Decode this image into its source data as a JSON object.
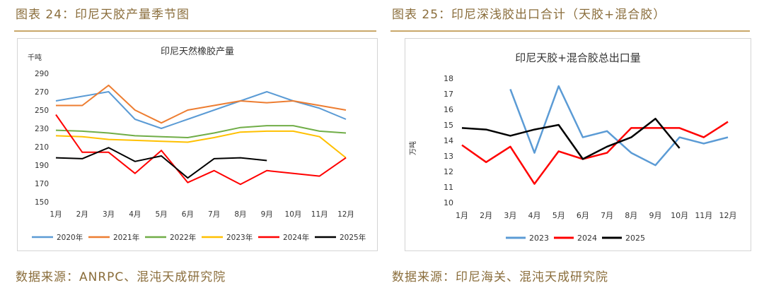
{
  "left": {
    "figure_title": "图表 24：印尼天胶产量季节图",
    "source": "数据来源：ANRPC、混沌天成研究院"
  },
  "right": {
    "figure_title": "图表 25：印尼深浅胶出口合计（天胶+混合胶）",
    "source": "数据来源：印尼海关、混沌天成研究院"
  },
  "chart_data": [
    {
      "type": "line",
      "title": "印尼天然橡胶产量",
      "ylabel": "千吨",
      "xlabel": "",
      "categories": [
        "1月",
        "2月",
        "3月",
        "4月",
        "5月",
        "6月",
        "7月",
        "8月",
        "9月",
        "10月",
        "11月",
        "12月"
      ],
      "ylim": [
        150,
        290
      ],
      "yticks": [
        150,
        170,
        190,
        210,
        230,
        250,
        270,
        290
      ],
      "grid": false,
      "legend": "bottom",
      "series": [
        {
          "name": "2020年",
          "color": "#5b9bd5",
          "values": [
            260,
            265,
            270,
            240,
            230,
            240,
            250,
            260,
            270,
            260,
            252,
            240
          ]
        },
        {
          "name": "2021年",
          "color": "#ed7d31",
          "values": [
            255,
            255,
            277,
            250,
            236,
            250,
            255,
            260,
            258,
            260,
            255,
            250
          ]
        },
        {
          "name": "2022年",
          "color": "#70ad47",
          "values": [
            228,
            227,
            225,
            222,
            221,
            220,
            225,
            231,
            233,
            233,
            227,
            225
          ]
        },
        {
          "name": "2023年",
          "color": "#ffc000",
          "values": [
            222,
            221,
            218,
            217,
            216,
            215,
            220,
            226,
            227,
            227,
            221,
            198
          ]
        },
        {
          "name": "2024年",
          "color": "#ff0000",
          "values": [
            245,
            204,
            204,
            181,
            206,
            171,
            184,
            169,
            184,
            181,
            178,
            198
          ]
        },
        {
          "name": "2025年",
          "color": "#000000",
          "values": [
            198,
            197,
            209,
            194,
            200,
            176,
            197,
            198,
            195,
            null,
            null,
            null
          ]
        }
      ]
    },
    {
      "type": "line",
      "title": "印尼天胶+混合胶总出口量",
      "ylabel": "万吨",
      "xlabel": "",
      "categories": [
        "1月",
        "2月",
        "3月",
        "4月",
        "5月",
        "6月",
        "7月",
        "8月",
        "9月",
        "10月",
        "11月",
        "12月"
      ],
      "ylim": [
        10,
        18
      ],
      "yticks": [
        10,
        11,
        12,
        13,
        14,
        15,
        16,
        17,
        18
      ],
      "grid": false,
      "legend": "bottom",
      "series": [
        {
          "name": "2023",
          "color": "#5b9bd5",
          "values": [
            null,
            null,
            17.3,
            13.2,
            17.5,
            14.2,
            14.6,
            13.2,
            12.4,
            14.2,
            13.8,
            14.2
          ]
        },
        {
          "name": "2024",
          "color": "#ff0000",
          "values": [
            13.7,
            12.6,
            13.6,
            11.2,
            13.3,
            12.8,
            13.2,
            14.8,
            14.8,
            14.8,
            14.2,
            15.2
          ]
        },
        {
          "name": "2025",
          "color": "#000000",
          "values": [
            14.8,
            14.7,
            14.3,
            14.7,
            15.0,
            12.8,
            13.6,
            14.2,
            15.4,
            13.5,
            null,
            null
          ]
        }
      ]
    }
  ]
}
